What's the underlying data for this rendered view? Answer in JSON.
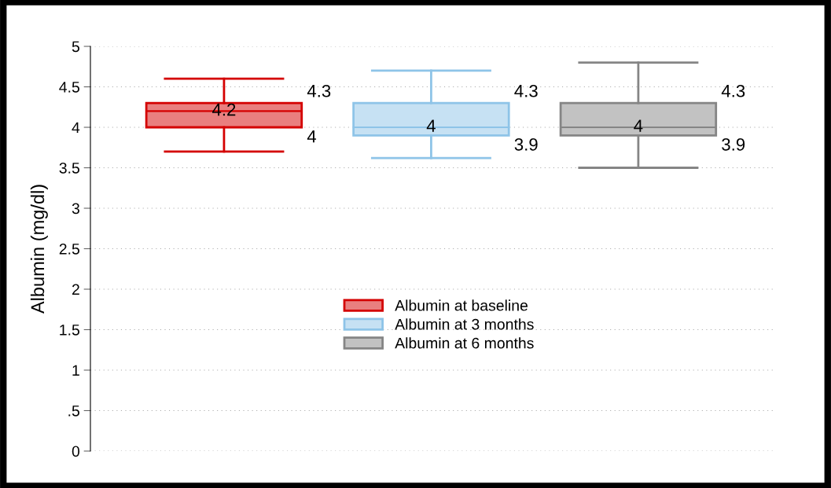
{
  "chart_data": {
    "type": "box",
    "ylabel": "Albumin (mg/dl)",
    "categories": [
      null,
      null,
      null
    ],
    "series": [
      {
        "name": "Albumin at baseline",
        "color": "#d40000",
        "boxes": [
          {
            "low": 3.7,
            "q1": 4,
            "median": 4.2,
            "q3": 4.3,
            "high": 4.6
          },
          null,
          null
        ],
        "value_labels": [
          [
            "4",
            "4.2",
            "4.3"
          ],
          null,
          null
        ]
      },
      {
        "name": "Albumin at 3 months",
        "color": "#8ec4e8",
        "boxes": [
          null,
          {
            "low": 3.62,
            "q1": 3.9,
            "median": 4,
            "q3": 4.3,
            "high": 4.7
          },
          null
        ],
        "value_labels": [
          null,
          [
            "3.9",
            "4",
            "4.3"
          ],
          null
        ]
      },
      {
        "name": "Albumin at 6 months",
        "color": "#858585",
        "boxes": [
          null,
          null,
          {
            "low": 3.5,
            "q1": 3.9,
            "median": 4,
            "q3": 4.3,
            "high": 4.8
          }
        ],
        "value_labels": [
          null,
          null,
          [
            "3.9",
            "4",
            "4.3"
          ]
        ]
      }
    ],
    "ylim": [
      0,
      5
    ],
    "yticks": [
      0,
      {
        "value": 0.5,
        "label": ".5"
      },
      1,
      1.5,
      2,
      2.5,
      3,
      3.5,
      4,
      4.5,
      5
    ],
    "grid": "y",
    "legend": "center",
    "tick_labels": "y"
  }
}
